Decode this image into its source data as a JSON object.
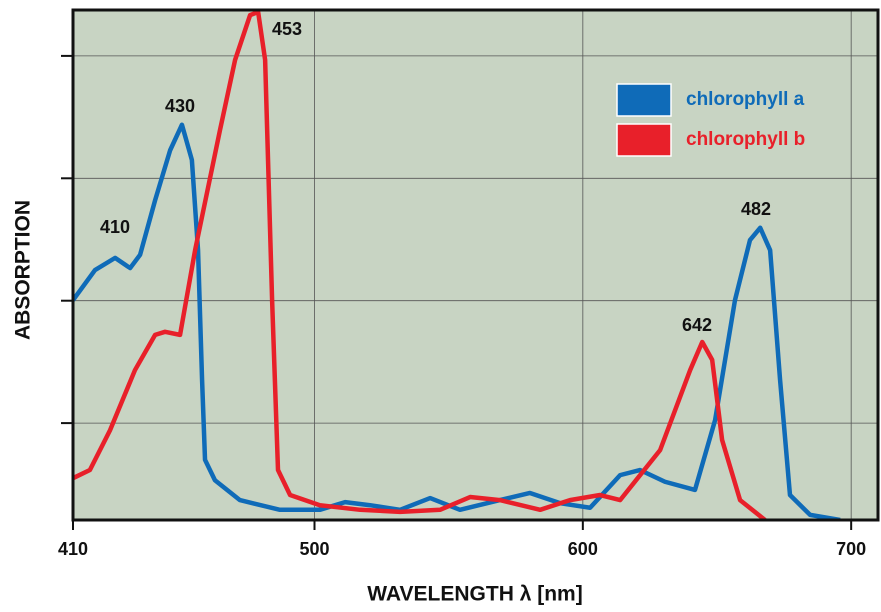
{
  "chart_data": {
    "type": "line",
    "x_label": "WAVELENGTH λ [nm]",
    "y_label": "ABSORPTION",
    "xlim": [
      410,
      710
    ],
    "ylim": [
      0,
      100
    ],
    "xticks": [
      410,
      500,
      600,
      700
    ],
    "yticks": [
      19,
      43,
      67,
      91
    ],
    "grid": true,
    "legend": "upper right",
    "annotations": [
      "410",
      "430",
      "453",
      "642",
      "482"
    ],
    "series": [
      {
        "name": "chlorophyll a",
        "color": "#0f6bb8",
        "x": [
          410,
          418.2,
          425.7,
          431.3,
          435.0,
          440.6,
          446.2,
          450.6,
          454.3,
          456.6,
          458.1,
          459.2,
          462.9,
          472.2,
          487.1,
          502.0,
          511.4,
          520.7,
          531.9,
          543.1,
          554.2,
          569.1,
          580.3,
          591.5,
          602.7,
          613.9,
          621.3,
          630.6,
          641.8,
          649.3,
          656.7,
          662.3,
          666.1,
          669.8,
          673.5,
          677.2,
          684.7,
          695.9
        ],
        "values": [
          43.1,
          49.0,
          51.4,
          49.4,
          52.0,
          62.7,
          72.5,
          77.5,
          70.6,
          52.9,
          27.5,
          11.8,
          7.8,
          3.9,
          2.0,
          2.0,
          3.5,
          2.9,
          2.0,
          4.3,
          2.0,
          3.9,
          5.3,
          3.3,
          2.4,
          8.8,
          9.8,
          7.5,
          5.9,
          19.6,
          43.1,
          54.9,
          57.3,
          52.9,
          27.5,
          4.9,
          1.0,
          0
        ]
      },
      {
        "name": "chlorophyll b",
        "color": "#e8202a",
        "x": [
          410,
          416.3,
          423.8,
          433.1,
          440.6,
          444.3,
          449.9,
          455.5,
          464.8,
          470.4,
          476.0,
          479.0,
          481.6,
          484.2,
          486.4,
          490.9,
          502.0,
          517.0,
          531.9,
          546.8,
          558.0,
          569.1,
          584.1,
          595.2,
          606.4,
          613.9,
          628.8,
          640.0,
          644.5,
          648.2,
          651.9,
          658.6,
          667.9
        ],
        "values": [
          8.2,
          9.8,
          17.6,
          29.4,
          36.3,
          36.9,
          36.3,
          52.9,
          76.5,
          90.2,
          99.0,
          99.6,
          90.2,
          43.1,
          9.8,
          4.9,
          2.9,
          2.0,
          1.6,
          2.0,
          4.5,
          3.9,
          2.0,
          3.9,
          4.9,
          3.9,
          13.7,
          29.4,
          34.9,
          31.4,
          15.7,
          3.9,
          0
        ]
      }
    ]
  }
}
